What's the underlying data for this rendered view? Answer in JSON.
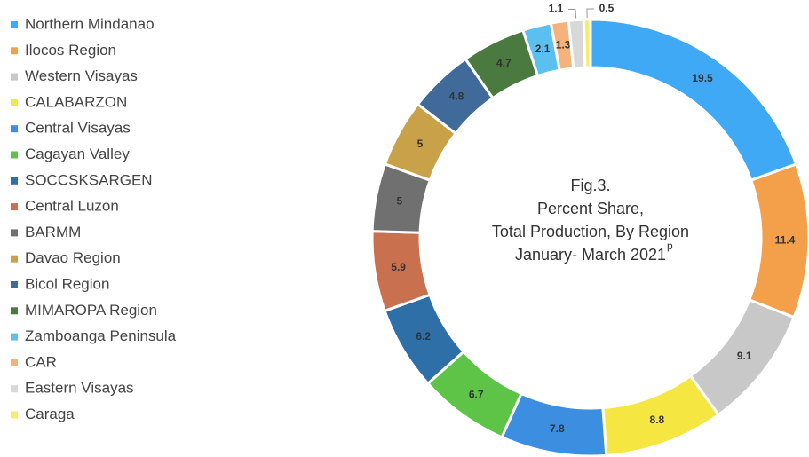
{
  "chart_data": {
    "type": "donut",
    "title_lines": [
      "Fig.3.",
      "Percent Share,",
      "Total Production, By Region",
      "January- March 2021"
    ],
    "title_superscript": "p",
    "categories": [
      "Northern Mindanao",
      "Ilocos Region",
      "Western Visayas",
      "CALABARZON",
      "Central Visayas",
      "Cagayan Valley",
      "SOCCSKSARGEN",
      "Central Luzon",
      "BARMM",
      "Davao Region",
      "Bicol Region",
      "MIMAROPA Region",
      "Zamboanga Peninsula",
      "CAR",
      "Eastern Visayas",
      "Caraga"
    ],
    "values": [
      19.5,
      11.4,
      9.1,
      8.8,
      7.8,
      6.7,
      6.2,
      5.9,
      5.0,
      5.0,
      4.8,
      4.7,
      2.1,
      1.3,
      1.1,
      0.5
    ],
    "colors": [
      "#3fa9f5",
      "#f4a04a",
      "#c8c8c8",
      "#f5e642",
      "#3b8ee0",
      "#5dc447",
      "#2f6fa8",
      "#c9704f",
      "#707070",
      "#c9a148",
      "#3f6a9a",
      "#4a7a3f",
      "#5bc0f0",
      "#f5b27a",
      "#d8d8d8",
      "#f5ee6a"
    ],
    "legend": "left"
  }
}
